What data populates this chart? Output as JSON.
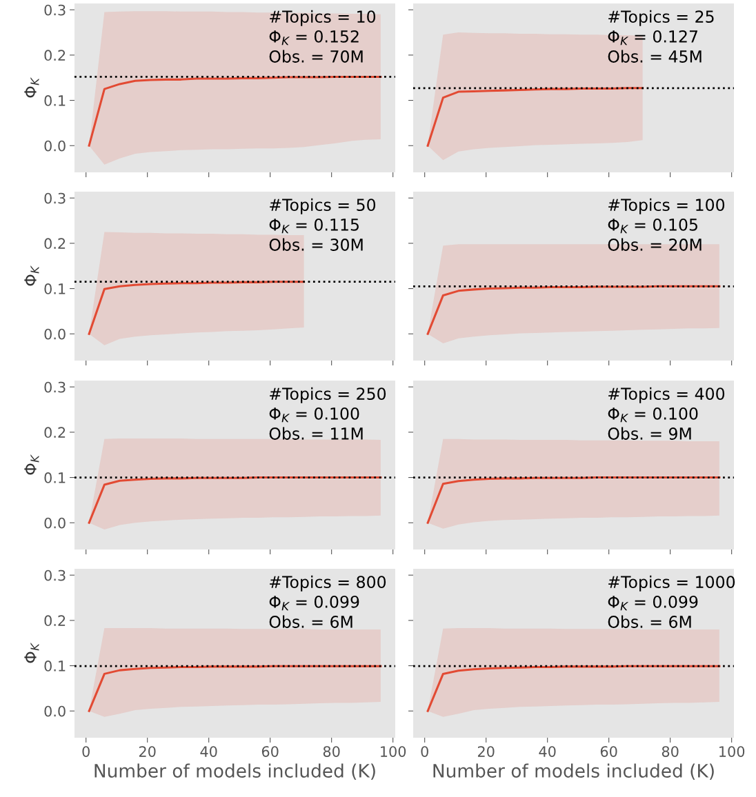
{
  "chart_data": [
    {
      "type": "line",
      "x": [
        1,
        6,
        11,
        16,
        21,
        26,
        31,
        36,
        41,
        46,
        51,
        56,
        61,
        66,
        71,
        76,
        81,
        86,
        91,
        96
      ],
      "ylabel": "Φ$_{K}$",
      "tick_labels": "y",
      "series": [
        {
          "color": "#e24a33",
          "values": [
            0,
            0.125,
            0.136,
            0.143,
            0.145,
            0.146,
            0.146,
            0.148,
            0.148,
            0.148,
            0.149,
            0.149,
            0.15,
            0.151,
            0.151,
            0.151,
            0.152,
            0.152,
            0.152,
            0.152
          ],
          "upper": [
            0,
            0.295,
            0.296,
            0.297,
            0.297,
            0.297,
            0.296,
            0.296,
            0.296,
            0.295,
            0.295,
            0.294,
            0.294,
            0.293,
            0.293,
            0.292,
            0.292,
            0.291,
            0.291,
            0.29
          ],
          "lower": [
            0,
            -0.042,
            -0.028,
            -0.018,
            -0.014,
            -0.012,
            -0.01,
            -0.009,
            -0.008,
            -0.008,
            -0.007,
            -0.006,
            -0.006,
            -0.005,
            -0.003,
            0.001,
            0.005,
            0.01,
            0.013,
            0.014
          ]
        }
      ],
      "xlim": [
        -3.75,
        100.75
      ],
      "xticks": [
        0,
        20,
        40,
        60,
        80,
        100
      ],
      "ylim": [
        -0.059,
        0.314
      ],
      "yticks": [
        {
          "value": 0,
          "label": "0.0"
        },
        0.1,
        0.2,
        0.3
      ],
      "ref_lines": [
        {
          "axis": "y",
          "value": 0.152,
          "color": "#000000",
          "line_style": "dotted"
        }
      ],
      "annotations": [
        "#Topics = 10",
        "Φ$_{K}$ = 0.152",
        "Obs. = 70M"
      ]
    },
    {
      "type": "line",
      "x": [
        1,
        6,
        11,
        16,
        21,
        26,
        31,
        36,
        41,
        46,
        51,
        56,
        61,
        66,
        71
      ],
      "tick_labels": false,
      "series": [
        {
          "color": "#e24a33",
          "values": [
            0,
            0.106,
            0.119,
            0.12,
            0.121,
            0.122,
            0.123,
            0.124,
            0.125,
            0.125,
            0.126,
            0.126,
            0.126,
            0.127,
            0.127
          ],
          "upper": [
            0,
            0.245,
            0.25,
            0.249,
            0.248,
            0.248,
            0.247,
            0.247,
            0.246,
            0.246,
            0.245,
            0.245,
            0.244,
            0.244,
            0.243
          ],
          "lower": [
            0,
            -0.032,
            -0.013,
            -0.008,
            -0.005,
            -0.003,
            -0.001,
            0.001,
            0.002,
            0.003,
            0.004,
            0.005,
            0.006,
            0.008,
            0.012
          ]
        }
      ],
      "xlim": [
        -3.75,
        100.75
      ],
      "xticks": [
        0,
        20,
        40,
        60,
        80,
        100
      ],
      "ylim": [
        -0.059,
        0.314
      ],
      "yticks": [
        {
          "value": 0,
          "label": null
        },
        {
          "value": 0.1,
          "label": null
        },
        {
          "value": 0.2,
          "label": null
        },
        {
          "value": 0.3,
          "label": null
        }
      ],
      "ref_lines": [
        {
          "axis": "y",
          "value": 0.127,
          "color": "#000000",
          "line_style": "dotted"
        }
      ],
      "annotations": [
        "#Topics = 25",
        "Φ$_{K}$ = 0.127",
        "Obs. = 45M"
      ]
    },
    {
      "type": "line",
      "x": [
        1,
        6,
        11,
        16,
        21,
        26,
        31,
        36,
        41,
        46,
        51,
        56,
        61,
        66,
        71
      ],
      "ylabel": "Φ$_{K}$",
      "tick_labels": "y",
      "series": [
        {
          "color": "#e24a33",
          "values": [
            0,
            0.099,
            0.105,
            0.108,
            0.11,
            0.111,
            0.112,
            0.112,
            0.113,
            0.113,
            0.114,
            0.114,
            0.115,
            0.115,
            0.115
          ],
          "upper": [
            0,
            0.225,
            0.224,
            0.223,
            0.223,
            0.222,
            0.222,
            0.221,
            0.221,
            0.22,
            0.22,
            0.219,
            0.219,
            0.218,
            0.218
          ],
          "lower": [
            0,
            -0.025,
            -0.011,
            -0.006,
            -0.003,
            -0.001,
            0.001,
            0.003,
            0.004,
            0.006,
            0.007,
            0.008,
            0.01,
            0.012,
            0.014
          ]
        }
      ],
      "xlim": [
        -3.75,
        100.75
      ],
      "xticks": [
        0,
        20,
        40,
        60,
        80,
        100
      ],
      "ylim": [
        -0.059,
        0.314
      ],
      "yticks": [
        {
          "value": 0,
          "label": "0.0"
        },
        0.1,
        0.2,
        0.3
      ],
      "ref_lines": [
        {
          "axis": "y",
          "value": 0.115,
          "color": "#000000",
          "line_style": "dotted"
        }
      ],
      "annotations": [
        "#Topics = 50",
        "Φ$_{K}$ = 0.115",
        "Obs. = 30M"
      ]
    },
    {
      "type": "line",
      "x": [
        1,
        6,
        11,
        16,
        21,
        26,
        31,
        36,
        41,
        46,
        51,
        56,
        61,
        66,
        71,
        76,
        81,
        86,
        91,
        96
      ],
      "tick_labels": false,
      "series": [
        {
          "color": "#e24a33",
          "values": [
            0,
            0.085,
            0.095,
            0.098,
            0.1,
            0.101,
            0.102,
            0.102,
            0.103,
            0.103,
            0.103,
            0.104,
            0.104,
            0.104,
            0.104,
            0.105,
            0.105,
            0.105,
            0.105,
            0.105
          ],
          "upper": [
            0,
            0.195,
            0.198,
            0.198,
            0.198,
            0.198,
            0.198,
            0.198,
            0.198,
            0.198,
            0.198,
            0.198,
            0.198,
            0.198,
            0.198,
            0.198,
            0.198,
            0.198,
            0.198,
            0.198
          ],
          "lower": [
            0,
            -0.021,
            -0.01,
            -0.006,
            -0.003,
            -0.001,
            0.001,
            0.002,
            0.003,
            0.004,
            0.005,
            0.006,
            0.007,
            0.008,
            0.009,
            0.01,
            0.011,
            0.012,
            0.012,
            0.013
          ]
        }
      ],
      "xlim": [
        -3.75,
        100.75
      ],
      "xticks": [
        0,
        20,
        40,
        60,
        80,
        100
      ],
      "ylim": [
        -0.059,
        0.314
      ],
      "yticks": [
        {
          "value": 0,
          "label": null
        },
        {
          "value": 0.1,
          "label": null
        },
        {
          "value": 0.2,
          "label": null
        },
        {
          "value": 0.3,
          "label": null
        }
      ],
      "ref_lines": [
        {
          "axis": "y",
          "value": 0.105,
          "color": "#000000",
          "line_style": "dotted"
        }
      ],
      "annotations": [
        "#Topics = 100",
        "Φ$_{K}$ = 0.105",
        "Obs. = 20M"
      ]
    },
    {
      "type": "line",
      "x": [
        1,
        6,
        11,
        16,
        21,
        26,
        31,
        36,
        41,
        46,
        51,
        56,
        61,
        66,
        71,
        76,
        81,
        86,
        91,
        96
      ],
      "ylabel": "Φ$_{K}$",
      "tick_labels": "y",
      "series": [
        {
          "color": "#e24a33",
          "values": [
            0,
            0.084,
            0.093,
            0.095,
            0.097,
            0.098,
            0.098,
            0.099,
            0.099,
            0.099,
            0.099,
            0.1,
            0.1,
            0.1,
            0.1,
            0.1,
            0.1,
            0.1,
            0.1,
            0.1
          ],
          "upper": [
            0,
            0.185,
            0.186,
            0.186,
            0.186,
            0.186,
            0.186,
            0.185,
            0.185,
            0.185,
            0.185,
            0.185,
            0.185,
            0.185,
            0.184,
            0.184,
            0.184,
            0.184,
            0.184,
            0.183
          ],
          "lower": [
            0,
            -0.015,
            -0.005,
            0.0,
            0.003,
            0.005,
            0.007,
            0.008,
            0.009,
            0.01,
            0.011,
            0.011,
            0.012,
            0.012,
            0.013,
            0.014,
            0.014,
            0.015,
            0.015,
            0.016
          ]
        }
      ],
      "xlim": [
        -3.75,
        100.75
      ],
      "xticks": [
        0,
        20,
        40,
        60,
        80,
        100
      ],
      "ylim": [
        -0.059,
        0.314
      ],
      "yticks": [
        {
          "value": 0,
          "label": "0.0"
        },
        0.1,
        0.2,
        0.3
      ],
      "ref_lines": [
        {
          "axis": "y",
          "value": 0.1,
          "color": "#000000",
          "line_style": "dotted"
        }
      ],
      "annotations": [
        "#Topics = 250",
        "Φ$_{K}$ = 0.100",
        "Obs. = 11M"
      ]
    },
    {
      "type": "line",
      "x": [
        1,
        6,
        11,
        16,
        21,
        26,
        31,
        36,
        41,
        46,
        51,
        56,
        61,
        66,
        71,
        76,
        81,
        86,
        91,
        96
      ],
      "tick_labels": false,
      "series": [
        {
          "color": "#e24a33",
          "values": [
            0,
            0.086,
            0.092,
            0.095,
            0.097,
            0.098,
            0.098,
            0.099,
            0.099,
            0.099,
            0.099,
            0.1,
            0.1,
            0.1,
            0.1,
            0.1,
            0.1,
            0.1,
            0.1,
            0.1
          ],
          "upper": [
            0,
            0.185,
            0.185,
            0.184,
            0.184,
            0.184,
            0.183,
            0.183,
            0.183,
            0.183,
            0.182,
            0.182,
            0.182,
            0.182,
            0.181,
            0.181,
            0.181,
            0.18,
            0.18,
            0.18
          ],
          "lower": [
            0,
            -0.013,
            -0.004,
            0.001,
            0.004,
            0.006,
            0.007,
            0.008,
            0.009,
            0.01,
            0.011,
            0.011,
            0.012,
            0.012,
            0.013,
            0.014,
            0.014,
            0.015,
            0.015,
            0.016
          ]
        }
      ],
      "xlim": [
        -3.75,
        100.75
      ],
      "xticks": [
        0,
        20,
        40,
        60,
        80,
        100
      ],
      "ylim": [
        -0.059,
        0.314
      ],
      "yticks": [
        {
          "value": 0,
          "label": null
        },
        {
          "value": 0.1,
          "label": null
        },
        {
          "value": 0.2,
          "label": null
        },
        {
          "value": 0.3,
          "label": null
        }
      ],
      "ref_lines": [
        {
          "axis": "y",
          "value": 0.1,
          "color": "#000000",
          "line_style": "dotted"
        }
      ],
      "annotations": [
        "#Topics = 400",
        "Φ$_{K}$ = 0.100",
        "Obs. = 9M"
      ]
    },
    {
      "type": "line",
      "x": [
        1,
        6,
        11,
        16,
        21,
        26,
        31,
        36,
        41,
        46,
        51,
        56,
        61,
        66,
        71,
        76,
        81,
        86,
        91,
        96
      ],
      "ylabel": "Φ$_{K}$",
      "xlabel": "Number of models included (K)",
      "series": [
        {
          "color": "#e24a33",
          "values": [
            0,
            0.082,
            0.09,
            0.093,
            0.095,
            0.096,
            0.097,
            0.097,
            0.098,
            0.098,
            0.098,
            0.098,
            0.099,
            0.099,
            0.099,
            0.099,
            0.099,
            0.099,
            0.099,
            0.099
          ],
          "upper": [
            0,
            0.183,
            0.183,
            0.183,
            0.183,
            0.182,
            0.182,
            0.182,
            0.182,
            0.182,
            0.181,
            0.181,
            0.181,
            0.181,
            0.181,
            0.18,
            0.18,
            0.18,
            0.18,
            0.18
          ],
          "lower": [
            0,
            -0.013,
            -0.006,
            0.002,
            0.005,
            0.007,
            0.009,
            0.01,
            0.011,
            0.012,
            0.013,
            0.014,
            0.014,
            0.015,
            0.016,
            0.017,
            0.018,
            0.018,
            0.019,
            0.02
          ]
        }
      ],
      "xlim": [
        -3.75,
        100.75
      ],
      "xticks": [
        0,
        20,
        40,
        60,
        80,
        100
      ],
      "ylim": [
        -0.059,
        0.314
      ],
      "yticks": [
        {
          "value": 0,
          "label": "0.0"
        },
        0.1,
        0.2,
        0.3
      ],
      "ref_lines": [
        {
          "axis": "y",
          "value": 0.099,
          "color": "#000000",
          "line_style": "dotted"
        }
      ],
      "annotations": [
        "#Topics = 800",
        "Φ$_{K}$ = 0.099",
        "Obs. = 6M"
      ]
    },
    {
      "type": "line",
      "x": [
        1,
        6,
        11,
        16,
        21,
        26,
        31,
        36,
        41,
        46,
        51,
        56,
        61,
        66,
        71,
        76,
        81,
        86,
        91,
        96
      ],
      "xlabel": "Number of models included (K)",
      "tick_labels": "x",
      "series": [
        {
          "color": "#e24a33",
          "values": [
            0,
            0.082,
            0.089,
            0.092,
            0.094,
            0.095,
            0.096,
            0.097,
            0.097,
            0.098,
            0.098,
            0.098,
            0.098,
            0.099,
            0.099,
            0.099,
            0.099,
            0.099,
            0.099,
            0.099
          ],
          "upper": [
            0,
            0.182,
            0.183,
            0.183,
            0.183,
            0.182,
            0.182,
            0.182,
            0.182,
            0.181,
            0.181,
            0.181,
            0.181,
            0.181,
            0.18,
            0.18,
            0.18,
            0.18,
            0.18,
            0.18
          ],
          "lower": [
            0,
            -0.013,
            -0.006,
            0.002,
            0.005,
            0.007,
            0.009,
            0.01,
            0.011,
            0.012,
            0.013,
            0.014,
            0.014,
            0.015,
            0.016,
            0.017,
            0.018,
            0.018,
            0.019,
            0.02
          ]
        }
      ],
      "xlim": [
        -3.75,
        100.75
      ],
      "xticks": [
        0,
        20,
        40,
        60,
        80,
        100
      ],
      "ylim": [
        -0.059,
        0.314
      ],
      "yticks": [
        {
          "value": 0,
          "label": null
        },
        {
          "value": 0.1,
          "label": null
        },
        {
          "value": 0.2,
          "label": null
        },
        {
          "value": 0.3,
          "label": null
        }
      ],
      "ref_lines": [
        {
          "axis": "y",
          "value": 0.099,
          "color": "#000000",
          "line_style": "dotted"
        }
      ],
      "annotations": [
        "#Topics = 1000",
        "Φ$_{K}$ = 0.099",
        "Obs. = 6M"
      ]
    }
  ]
}
